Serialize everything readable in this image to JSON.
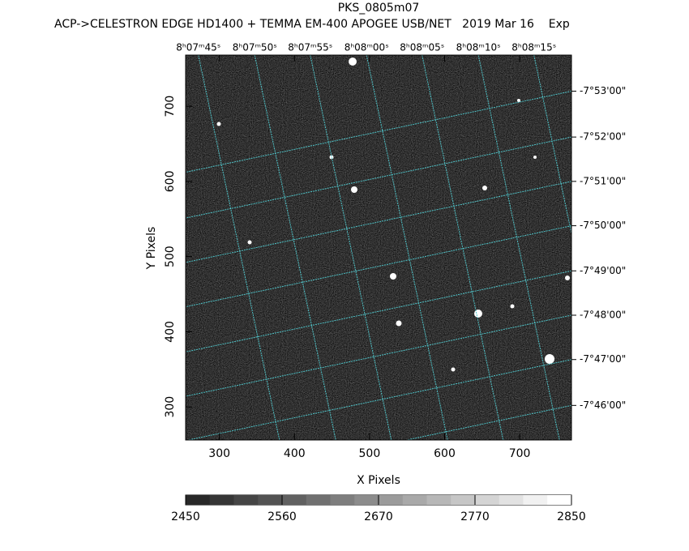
{
  "chart_data": {
    "type": "image",
    "title": "PKS_0805m07",
    "subtitle": "ACP->CELESTRON EDGE HD1400 + TEMMA EM-400 APOGEE USB/NET   2019 Mar 16    Exp",
    "xlabel": "X Pixels",
    "ylabel": "Y Pixels",
    "xlim": [
      255,
      769
    ],
    "ylim": [
      256,
      768
    ],
    "xticks": [
      300,
      400,
      500,
      600,
      700
    ],
    "yticks": [
      300,
      400,
      500,
      600,
      700
    ],
    "ra_ticks": [
      {
        "value": 272,
        "label": "8ʰ07ᵐ45ˢ"
      },
      {
        "value": 347,
        "label": "8ʰ07ᵐ50ˢ"
      },
      {
        "value": 421,
        "label": "8ʰ07ᵐ55ˢ"
      },
      {
        "value": 496,
        "label": "8ʰ08ᵐ00ˢ"
      },
      {
        "value": 570,
        "label": "8ʰ08ᵐ05ˢ"
      },
      {
        "value": 645,
        "label": "8ʰ08ᵐ10ˢ"
      },
      {
        "value": 719,
        "label": "8ʰ08ᵐ15ˢ"
      }
    ],
    "dec_ticks": [
      {
        "value": 720,
        "label": "-7°53'00\""
      },
      {
        "value": 659,
        "label": "-7°52'00\""
      },
      {
        "value": 600,
        "label": "-7°51'00\""
      },
      {
        "value": 541,
        "label": "-7°50'00\""
      },
      {
        "value": 481,
        "label": "-7°49'00\""
      },
      {
        "value": 422,
        "label": "-7°48'00\""
      },
      {
        "value": 363,
        "label": "-7°47'00\""
      },
      {
        "value": 302,
        "label": "-7°46'00\""
      }
    ],
    "grid_color": "#4fc3c8",
    "colorbar_lim": [
      2450,
      2850
    ],
    "colorbar_ticks": [
      2450,
      2560,
      2670,
      2770,
      2850
    ]
  }
}
